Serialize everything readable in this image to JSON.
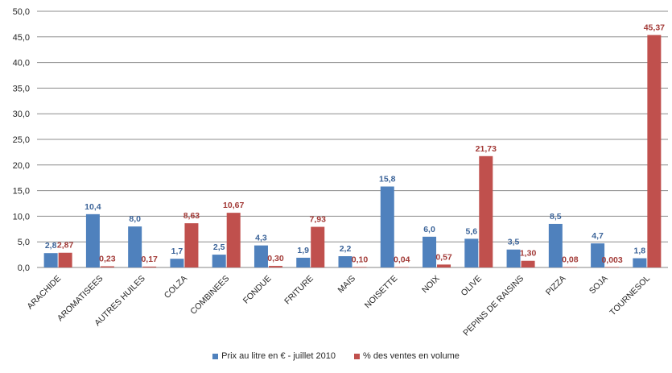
{
  "chart_data": {
    "type": "bar",
    "categories": [
      "ARACHIDE",
      "AROMATISEES",
      "AUTRES HUILES",
      "COLZA",
      "COMBINEES",
      "FONDUE",
      "FRITURE",
      "MAIS",
      "NOISETTE",
      "NOIX",
      "OLIVE",
      "PEPINS DE RAISINS",
      "PIZZA",
      "SOJA",
      "TOURNESOL"
    ],
    "series": [
      {
        "name": "Prix au litre en € - juillet 2010",
        "color": "#4F81BD",
        "label_color": "#3C6499",
        "values": [
          2.8,
          10.4,
          8.0,
          1.7,
          2.5,
          4.3,
          1.9,
          2.2,
          15.8,
          6.0,
          5.6,
          3.5,
          8.5,
          4.7,
          1.8
        ],
        "labels": [
          "2,8",
          "10,4",
          "8,0",
          "1,7",
          "2,5",
          "4,3",
          "1,9",
          "2,2",
          "15,8",
          "6,0",
          "5,6",
          "3,5",
          "8,5",
          "4,7",
          "1,8"
        ]
      },
      {
        "name": "% des ventes en volume",
        "color": "#C0504D",
        "label_color": "#A33B38",
        "values": [
          2.87,
          0.23,
          0.17,
          8.63,
          10.67,
          0.3,
          7.93,
          0.1,
          0.04,
          0.57,
          21.73,
          1.3,
          0.08,
          0.003,
          45.37
        ],
        "labels": [
          "2,87",
          "0,23",
          "0,17",
          "8,63",
          "10,67",
          "0,30",
          "7,93",
          "0,10",
          "0,04",
          "0,57",
          "21,73",
          "1,30",
          "0,08",
          "0,003",
          "45,37"
        ]
      }
    ],
    "ylim": [
      0,
      50
    ],
    "yticks": [
      "0,0",
      "5,0",
      "10,0",
      "15,0",
      "20,0",
      "25,0",
      "30,0",
      "35,0",
      "40,0",
      "45,0",
      "50,0"
    ],
    "grid": true,
    "legend_position": "bottom",
    "title": "",
    "xlabel": "",
    "ylabel": ""
  }
}
